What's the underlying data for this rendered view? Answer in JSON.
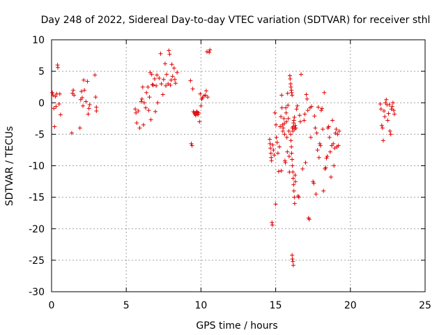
{
  "chart_data": {
    "type": "scatter",
    "title": "Day 248 of 2022, Sidereal Day-to-day VTEC variation (SDTVAR) for receiver sthl",
    "xlabel": "GPS time / hours",
    "ylabel": "SDTVAR / TECUs",
    "xlim": [
      0,
      25
    ],
    "ylim": [
      -30,
      10
    ],
    "x_ticks": [
      0,
      5,
      10,
      15,
      20,
      25
    ],
    "y_ticks": [
      -30,
      -25,
      -20,
      -15,
      -10,
      -5,
      0,
      5,
      10
    ],
    "grid": true,
    "marker": "plus",
    "marker_color": "#e00000",
    "series": [
      {
        "name": "SDTVAR",
        "points": [
          [
            0.05,
            1.6
          ],
          [
            0.1,
            1.2
          ],
          [
            0.15,
            -0.9
          ],
          [
            0.2,
            -3.8
          ],
          [
            0.25,
            1.0
          ],
          [
            0.3,
            -0.6
          ],
          [
            0.35,
            1.4
          ],
          [
            0.4,
            6.0
          ],
          [
            0.42,
            5.6
          ],
          [
            0.5,
            -0.2
          ],
          [
            0.55,
            1.4
          ],
          [
            0.6,
            -1.9
          ],
          [
            1.35,
            -4.8
          ],
          [
            1.4,
            1.5
          ],
          [
            1.45,
            2.0
          ],
          [
            1.5,
            1.2
          ],
          [
            1.9,
            -4.0
          ],
          [
            1.95,
            0.5
          ],
          [
            2.0,
            1.8
          ],
          [
            2.05,
            0.8
          ],
          [
            2.1,
            -0.5
          ],
          [
            2.15,
            3.6
          ],
          [
            2.2,
            2.0
          ],
          [
            2.3,
            0.2
          ],
          [
            2.4,
            3.4
          ],
          [
            2.45,
            -1.8
          ],
          [
            2.5,
            -0.9
          ],
          [
            2.55,
            -0.3
          ],
          [
            2.9,
            4.4
          ],
          [
            2.95,
            0.9
          ],
          [
            3.0,
            -0.7
          ],
          [
            3.0,
            -1.3
          ],
          [
            5.6,
            -1.0
          ],
          [
            5.65,
            -1.6
          ],
          [
            5.7,
            -3.2
          ],
          [
            5.8,
            -1.3
          ],
          [
            5.9,
            -4.0
          ],
          [
            6.0,
            0.2
          ],
          [
            6.05,
            0.6
          ],
          [
            6.1,
            2.5
          ],
          [
            6.15,
            -3.5
          ],
          [
            6.2,
            0.0
          ],
          [
            6.3,
            -0.8
          ],
          [
            6.35,
            1.6
          ],
          [
            6.45,
            2.5
          ],
          [
            6.5,
            -1.2
          ],
          [
            6.55,
            0.9
          ],
          [
            6.6,
            4.8
          ],
          [
            6.65,
            -2.7
          ],
          [
            6.7,
            4.5
          ],
          [
            6.75,
            2.9
          ],
          [
            6.8,
            2.8
          ],
          [
            6.9,
            3.8
          ],
          [
            6.95,
            -1.4
          ],
          [
            7.0,
            2.7
          ],
          [
            7.05,
            4.4
          ],
          [
            7.1,
            0.0
          ],
          [
            7.2,
            3.9
          ],
          [
            7.3,
            7.8
          ],
          [
            7.35,
            3.0
          ],
          [
            7.45,
            1.3
          ],
          [
            7.5,
            3.7
          ],
          [
            7.6,
            6.2
          ],
          [
            7.65,
            2.7
          ],
          [
            7.7,
            4.5
          ],
          [
            7.8,
            3.0
          ],
          [
            7.85,
            8.3
          ],
          [
            7.9,
            7.7
          ],
          [
            7.95,
            2.8
          ],
          [
            8.0,
            3.6
          ],
          [
            8.05,
            6.1
          ],
          [
            8.1,
            4.2
          ],
          [
            8.2,
            5.5
          ],
          [
            8.25,
            3.7
          ],
          [
            8.3,
            3.1
          ],
          [
            8.4,
            4.8
          ],
          [
            9.3,
            3.5
          ],
          [
            9.35,
            -6.5
          ],
          [
            9.4,
            -6.8
          ],
          [
            9.45,
            2.2
          ],
          [
            9.5,
            -1.4
          ],
          [
            9.55,
            -1.6
          ],
          [
            9.6,
            -1.8
          ],
          [
            9.65,
            -2.0
          ],
          [
            9.7,
            -1.4
          ],
          [
            9.75,
            -1.5
          ],
          [
            9.8,
            -1.9
          ],
          [
            9.85,
            -1.6
          ],
          [
            9.9,
            -3.0
          ],
          [
            9.95,
            1.4
          ],
          [
            10.0,
            -0.5
          ],
          [
            10.05,
            0.6
          ],
          [
            10.1,
            0.8
          ],
          [
            10.2,
            1.1
          ],
          [
            10.3,
            1.2
          ],
          [
            10.35,
            1.9
          ],
          [
            10.4,
            8.1
          ],
          [
            10.45,
            0.9
          ],
          [
            10.55,
            8.0
          ],
          [
            10.6,
            8.4
          ],
          [
            14.6,
            -5.8
          ],
          [
            14.62,
            -6.5
          ],
          [
            14.65,
            -7.2
          ],
          [
            14.68,
            -8.0
          ],
          [
            14.7,
            -8.7
          ],
          [
            14.72,
            -9.2
          ],
          [
            14.75,
            -19.0
          ],
          [
            14.78,
            -19.4
          ],
          [
            14.8,
            -6.7
          ],
          [
            14.85,
            -7.5
          ],
          [
            14.9,
            -8.3
          ],
          [
            14.95,
            -1.6
          ],
          [
            15.0,
            -16.1
          ],
          [
            15.02,
            -3.5
          ],
          [
            15.05,
            -5.5
          ],
          [
            15.1,
            -6.3
          ],
          [
            15.15,
            -8.0
          ],
          [
            15.2,
            -10.9
          ],
          [
            15.25,
            -7.0
          ],
          [
            15.3,
            -3.8
          ],
          [
            15.35,
            -2.2
          ],
          [
            15.38,
            -10.8
          ],
          [
            15.4,
            1.2
          ],
          [
            15.42,
            -0.8
          ],
          [
            15.45,
            -3.5
          ],
          [
            15.48,
            -4.5
          ],
          [
            15.5,
            -4.0
          ],
          [
            15.55,
            -2.5
          ],
          [
            15.58,
            -3.3
          ],
          [
            15.6,
            -5.0
          ],
          [
            15.62,
            -9.2
          ],
          [
            15.65,
            -9.5
          ],
          [
            15.68,
            -0.8
          ],
          [
            15.7,
            -1.6
          ],
          [
            15.72,
            -3.0
          ],
          [
            15.75,
            -5.5
          ],
          [
            15.78,
            -7.8
          ],
          [
            15.8,
            1.5
          ],
          [
            15.82,
            -0.4
          ],
          [
            15.85,
            -2.5
          ],
          [
            15.88,
            -4.5
          ],
          [
            15.9,
            -8.5
          ],
          [
            15.92,
            -11.0
          ],
          [
            15.95,
            4.3
          ],
          [
            15.97,
            3.8
          ],
          [
            16.0,
            3.0
          ],
          [
            16.02,
            2.5
          ],
          [
            16.05,
            2.0
          ],
          [
            16.07,
            1.6
          ],
          [
            16.1,
            1.2
          ],
          [
            16.12,
            -4.0
          ],
          [
            16.15,
            -4.5
          ],
          [
            16.17,
            -3.8
          ],
          [
            16.2,
            -3.2
          ],
          [
            16.22,
            -2.8
          ],
          [
            16.25,
            -2.3
          ],
          [
            16.27,
            -4.2
          ],
          [
            16.3,
            -3.6
          ],
          [
            16.0,
            -5.0
          ],
          [
            16.02,
            -6.0
          ],
          [
            16.05,
            -7.0
          ],
          [
            16.07,
            -8.0
          ],
          [
            16.1,
            -9.0
          ],
          [
            16.12,
            -10.0
          ],
          [
            16.15,
            -11.0
          ],
          [
            16.17,
            -12.0
          ],
          [
            16.2,
            -13.0
          ],
          [
            16.22,
            -14.0
          ],
          [
            16.25,
            -15.0
          ],
          [
            16.27,
            -16.0
          ],
          [
            16.1,
            -24.2
          ],
          [
            16.12,
            -24.8
          ],
          [
            16.15,
            -25.2
          ],
          [
            16.18,
            -25.8
          ],
          [
            16.3,
            -11.5
          ],
          [
            16.32,
            -12.5
          ],
          [
            16.35,
            -4.0
          ],
          [
            16.4,
            -1.0
          ],
          [
            16.45,
            -0.5
          ],
          [
            16.5,
            -14.8
          ],
          [
            16.55,
            -15.0
          ],
          [
            16.6,
            -2.0
          ],
          [
            16.65,
            -3.0
          ],
          [
            16.7,
            4.5
          ],
          [
            16.8,
            -10.5
          ],
          [
            16.9,
            -2.8
          ],
          [
            16.95,
            -1.8
          ],
          [
            17.0,
            -9.5
          ],
          [
            17.05,
            1.3
          ],
          [
            17.1,
            0.6
          ],
          [
            17.15,
            -1.2
          ],
          [
            17.2,
            -18.3
          ],
          [
            17.25,
            -18.5
          ],
          [
            17.3,
            -0.8
          ],
          [
            17.35,
            -5.5
          ],
          [
            17.4,
            -0.6
          ],
          [
            17.5,
            -12.5
          ],
          [
            17.55,
            -12.8
          ],
          [
            17.6,
            -2.1
          ],
          [
            17.65,
            -4.0
          ],
          [
            17.7,
            -14.5
          ],
          [
            17.75,
            -4.8
          ],
          [
            17.8,
            -7.5
          ],
          [
            17.85,
            -0.7
          ],
          [
            17.9,
            -8.7
          ],
          [
            17.95,
            -6.5
          ],
          [
            18.0,
            -6.8
          ],
          [
            18.05,
            -1.2
          ],
          [
            18.1,
            -0.9
          ],
          [
            18.15,
            -4.2
          ],
          [
            18.2,
            -14.0
          ],
          [
            18.25,
            1.6
          ],
          [
            18.3,
            -10.5
          ],
          [
            18.35,
            -10.3
          ],
          [
            18.4,
            -8.8
          ],
          [
            18.45,
            -8.5
          ],
          [
            18.5,
            -4.0
          ],
          [
            18.55,
            -3.8
          ],
          [
            18.6,
            -5.5
          ],
          [
            18.65,
            -7.8
          ],
          [
            18.7,
            -11.8
          ],
          [
            18.75,
            -6.8
          ],
          [
            18.8,
            -2.8
          ],
          [
            18.85,
            -6.5
          ],
          [
            18.9,
            -10.0
          ],
          [
            18.95,
            -7.2
          ],
          [
            19.0,
            -4.8
          ],
          [
            19.05,
            -4.2
          ],
          [
            19.1,
            -7.0
          ],
          [
            19.15,
            -5.0
          ],
          [
            19.2,
            -6.8
          ],
          [
            19.25,
            -4.5
          ],
          [
            22.0,
            -0.2
          ],
          [
            22.05,
            -1.0
          ],
          [
            22.1,
            -3.6
          ],
          [
            22.15,
            -4.0
          ],
          [
            22.2,
            -6.0
          ],
          [
            22.25,
            -1.3
          ],
          [
            22.3,
            -2.2
          ],
          [
            22.35,
            0.0
          ],
          [
            22.4,
            0.5
          ],
          [
            22.45,
            -0.3
          ],
          [
            22.5,
            -2.8
          ],
          [
            22.55,
            -1.7
          ],
          [
            22.6,
            -0.3
          ],
          [
            22.65,
            -4.5
          ],
          [
            22.7,
            -5.0
          ],
          [
            22.75,
            -1.0
          ],
          [
            22.8,
            -0.6
          ],
          [
            22.85,
            0.0
          ],
          [
            22.9,
            -1.2
          ],
          [
            22.95,
            -1.8
          ]
        ]
      }
    ]
  }
}
